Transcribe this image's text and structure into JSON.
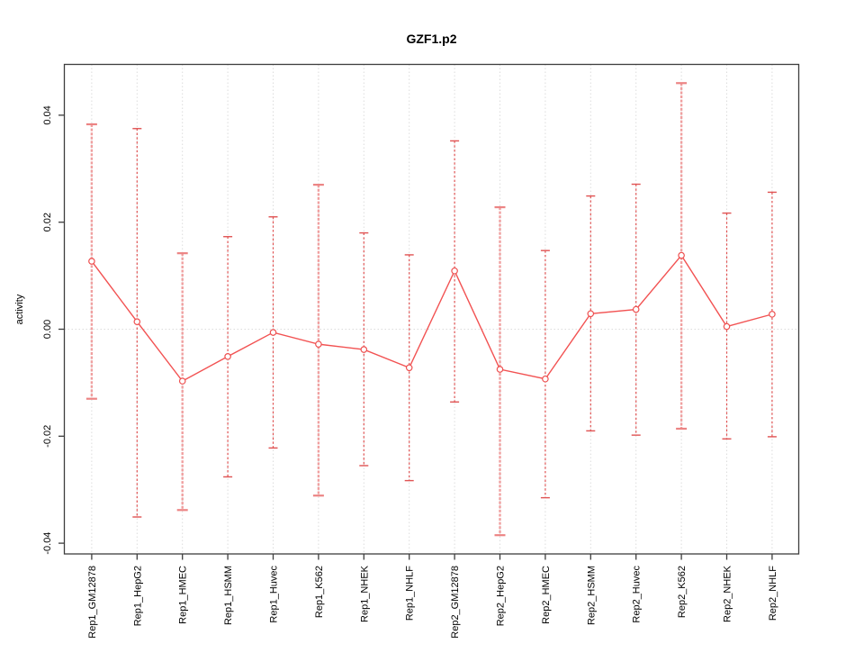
{
  "title": "GZF1.p2",
  "axes": {
    "ylabel": "activity",
    "ytick_labels": [
      "0.04",
      "0.02",
      "0.00",
      "-0.02",
      "-0.04"
    ],
    "ytick_values": [
      0.04,
      0.02,
      0.0,
      -0.02,
      -0.04
    ]
  },
  "colors": {
    "line": "#f25252",
    "marker_stroke": "#ee5050",
    "marker_fill": "#ffffff",
    "errorbar_thin": "#e05353",
    "errorbar_thick": "#f0a0a0",
    "errorbar_thick_cap": "#ec8484",
    "grid": "#dcdcdc",
    "axis": "#3d3d3d",
    "background": "#ffffff"
  },
  "chart_data": {
    "type": "line",
    "subtype": "point-range (means with error bars, R-style plotCI)",
    "title": "GZF1.p2",
    "xlabel": "",
    "ylabel": "activity",
    "ylim": [
      -0.042,
      0.0495
    ],
    "yticks": [
      -0.04,
      -0.02,
      0.0,
      0.02,
      0.04
    ],
    "grid": "dotted vertical line at each category; dotted horizontal line at y=0",
    "legend_position": "none",
    "categories": [
      "Rep1_GM12878",
      "Rep1_HepG2",
      "Rep1_HMEC",
      "Rep1_HSMM",
      "Rep1_Huvec",
      "Rep1_K562",
      "Rep1_NHEK",
      "Rep1_NHLF",
      "Rep2_GM12878",
      "Rep2_HepG2",
      "Rep2_HMEC",
      "Rep2_HSMM",
      "Rep2_Huvec",
      "Rep2_K562",
      "Rep2_NHEK",
      "Rep2_NHLF"
    ],
    "series": [
      {
        "name": "activity_mean",
        "values": [
          0.0127,
          0.0014,
          -0.0097,
          -0.0051,
          -0.0006,
          -0.0028,
          -0.0038,
          -0.0072,
          0.0109,
          -0.0075,
          -0.0093,
          0.0029,
          0.0037,
          0.0138,
          0.0005,
          0.0028
        ]
      },
      {
        "name": "errorbar_upper",
        "values": [
          0.0383,
          0.0375,
          0.0142,
          0.0173,
          0.021,
          0.027,
          0.018,
          0.0139,
          0.0352,
          0.0228,
          0.0147,
          0.0249,
          0.0271,
          0.046,
          0.0217,
          0.0256
        ]
      },
      {
        "name": "errorbar_lower",
        "values": [
          -0.013,
          -0.0351,
          -0.0338,
          -0.0276,
          -0.0222,
          -0.0311,
          -0.0255,
          -0.0283,
          -0.0136,
          -0.0385,
          -0.0315,
          -0.019,
          -0.0198,
          -0.0186,
          -0.0205,
          -0.0201
        ]
      }
    ],
    "errorbar_line_weight": [
      2,
      1,
      2,
      1,
      1,
      2,
      1,
      1,
      1,
      2,
      1,
      1,
      1,
      2,
      1,
      1
    ]
  }
}
